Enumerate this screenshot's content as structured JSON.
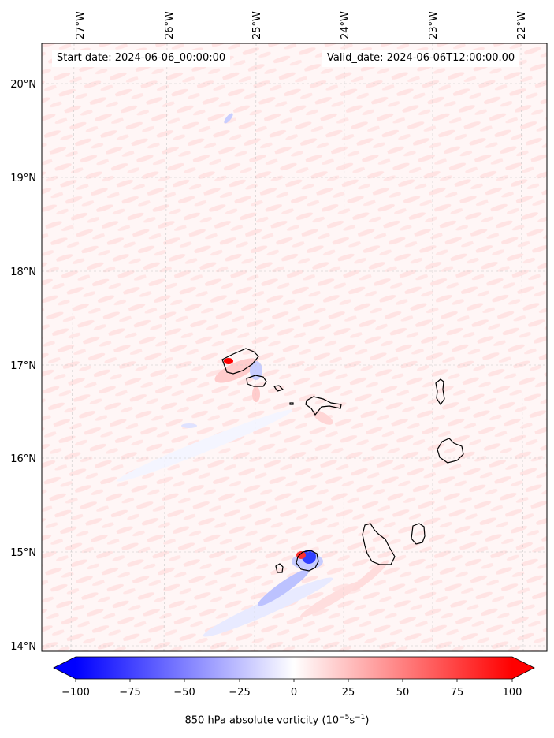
{
  "header": {
    "start_date": "Start date: 2024-06-06_00:00:00",
    "valid_date": "Valid_date: 2024-06-06T12:00:00.00"
  },
  "map": {
    "lon_ticks": [
      "27°W",
      "26°W",
      "25°W",
      "24°W",
      "23°W",
      "22°W"
    ],
    "lat_ticks": [
      "20°N",
      "19°N",
      "18°N",
      "17°N",
      "16°N",
      "15°N",
      "14°N"
    ],
    "gridlines": true
  },
  "colorbar": {
    "ticks": [
      "−100",
      "−75",
      "−50",
      "−25",
      "0",
      "25",
      "50",
      "75",
      "100"
    ],
    "label": "850 hPa absolute vorticity (10",
    "label_sup1": "−5",
    "label_mid": "s",
    "label_sup2": "−1",
    "label_end": ")",
    "colors": {
      "min": "#0000ff",
      "mid": "#ffffff",
      "max": "#ff0000"
    }
  }
}
